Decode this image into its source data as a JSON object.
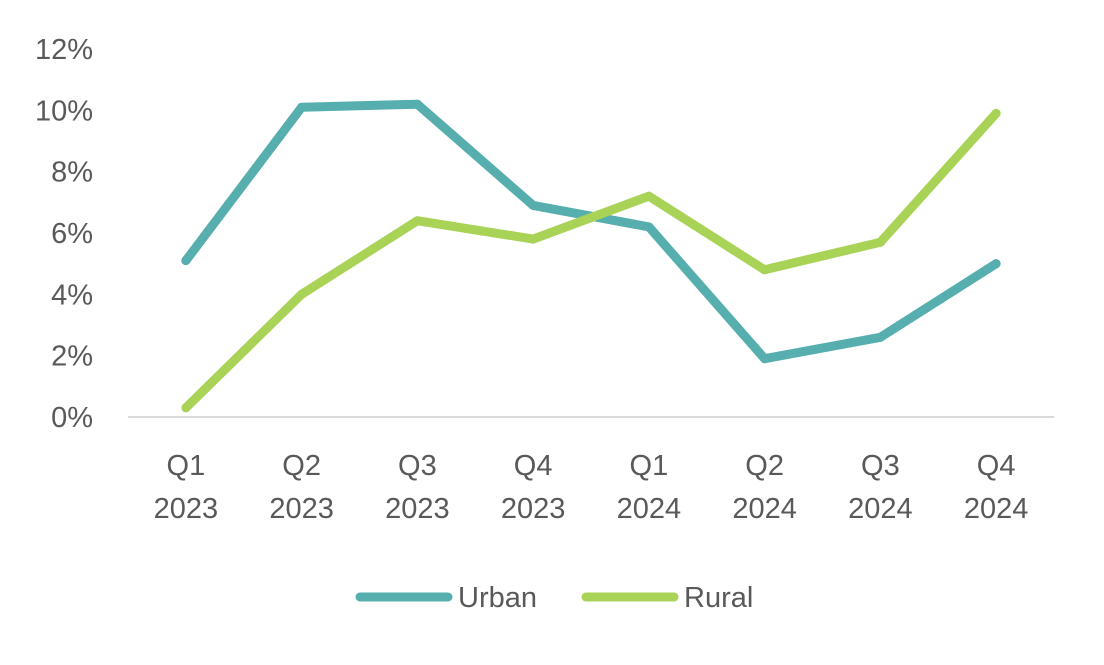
{
  "chart_data": {
    "type": "line",
    "title": "",
    "xlabel": "",
    "ylabel": "",
    "categories": [
      [
        "Q1",
        "2023"
      ],
      [
        "Q2",
        "2023"
      ],
      [
        "Q3",
        "2023"
      ],
      [
        "Q4",
        "2023"
      ],
      [
        "Q1",
        "2024"
      ],
      [
        "Q2",
        "2024"
      ],
      [
        "Q3",
        "2024"
      ],
      [
        "Q4",
        "2024"
      ]
    ],
    "ylim": [
      0,
      12
    ],
    "y_ticks": [
      0,
      2,
      4,
      6,
      8,
      10,
      12
    ],
    "y_tick_labels": [
      "0%",
      "2%",
      "4%",
      "6%",
      "8%",
      "10%",
      "12%"
    ],
    "y_unit": "%",
    "grid": false,
    "legend_position": "bottom",
    "series": [
      {
        "name": "Urban",
        "color": "#56AEAE",
        "values": [
          5.1,
          10.1,
          10.2,
          6.9,
          6.2,
          1.9,
          2.6,
          5.0
        ]
      },
      {
        "name": "Rural",
        "color": "#A9D356",
        "values": [
          0.3,
          4.0,
          6.4,
          5.8,
          7.2,
          4.8,
          5.7,
          9.9
        ]
      }
    ]
  }
}
